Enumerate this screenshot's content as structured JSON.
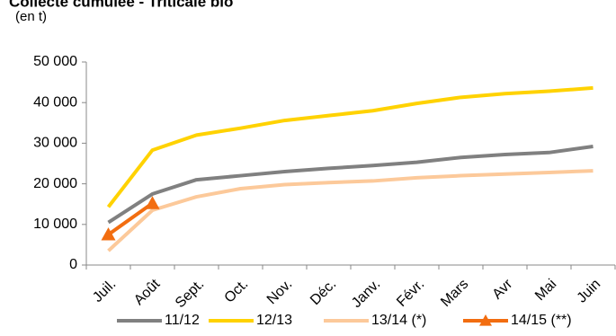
{
  "chart_data": {
    "type": "line",
    "title": "Collecte cumulée - Triticale bio",
    "subtitle": "(en t)",
    "categories": [
      "Juil.",
      "Août",
      "Sept.",
      "Oct.",
      "Nov.",
      "Déc.",
      "Janv.",
      "Févr.",
      "Mars",
      "Avr",
      "Mai",
      "Juin"
    ],
    "series": [
      {
        "name": "11/12",
        "color": "#808080",
        "values": [
          10500,
          17500,
          21000,
          22000,
          23000,
          23800,
          24500,
          25300,
          26500,
          27200,
          27700,
          29200
        ]
      },
      {
        "name": "12/13",
        "color": "#ffd200",
        "values": [
          14300,
          28300,
          32000,
          33700,
          35600,
          36800,
          38000,
          39800,
          41300,
          42200,
          42800,
          43600
        ]
      },
      {
        "name": "13/14 (*)",
        "color": "#fcc99a",
        "values": [
          3500,
          13500,
          16800,
          18800,
          19800,
          20300,
          20700,
          21500,
          22000,
          22400,
          22800,
          23200
        ]
      },
      {
        "name": "14/15 (**)",
        "color": "#f26d10",
        "marker": "triangle",
        "values": [
          7500,
          15200,
          null,
          null,
          null,
          null,
          null,
          null,
          null,
          null,
          null,
          null
        ]
      }
    ],
    "ylim": [
      0,
      50000
    ],
    "yticks": [
      {
        "value": 0,
        "label": "0"
      },
      {
        "value": 10000,
        "label": "10 000"
      },
      {
        "value": 20000,
        "label": "20 000"
      },
      {
        "value": 30000,
        "label": "30 000"
      },
      {
        "value": 40000,
        "label": "40 000"
      },
      {
        "value": 50000,
        "label": "50 000"
      }
    ],
    "grid": false,
    "legend": "bottom"
  }
}
